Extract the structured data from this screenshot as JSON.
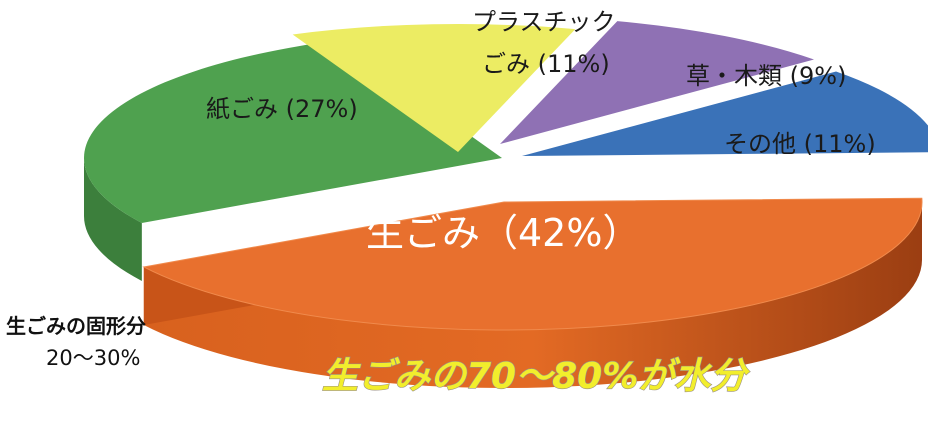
{
  "chart_data": {
    "type": "pie",
    "slices": [
      {
        "label": "生ごみ（42%）",
        "value": 42,
        "color": "#e8702e"
      },
      {
        "label": "紙ごみ (27%)",
        "value": 27,
        "color": "#4fa14f"
      },
      {
        "label_lines": [
          "プラスチック",
          "ごみ (11%)"
        ],
        "value": 11,
        "color": "#ecec63"
      },
      {
        "label": "草・木類 (9%)",
        "value": 9,
        "color": "#8f71b4"
      },
      {
        "label": "その他 (11%)",
        "value": 11,
        "color": "#3a72b8"
      }
    ]
  },
  "annotations": {
    "solid_label": "生ごみの固形分",
    "solid_range": "20～30%",
    "water_banner": "生ごみの70～80%が水分"
  }
}
